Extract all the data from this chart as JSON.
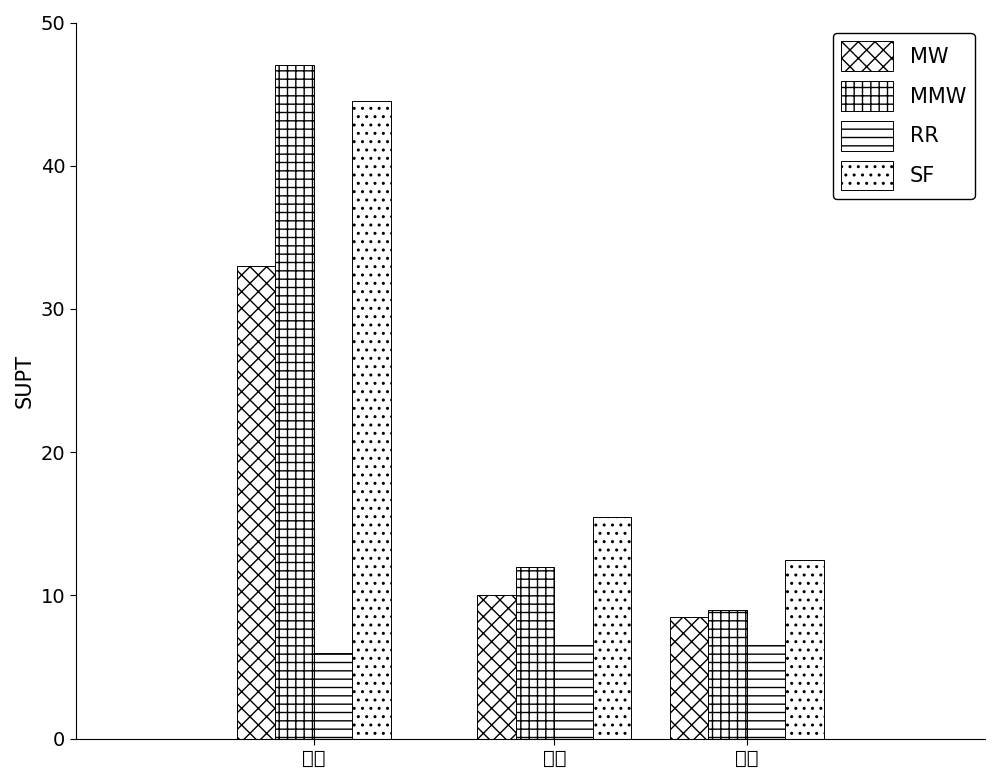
{
  "categories": [
    "轻载",
    "中载",
    "重载"
  ],
  "series": {
    "MW": [
      33,
      10,
      8.5
    ],
    "MMW": [
      47,
      12,
      9
    ],
    "RR": [
      6,
      6.5,
      6.5
    ],
    "SF": [
      44.5,
      15.5,
      12.5
    ]
  },
  "ylabel": "SUPT",
  "ylim": [
    0,
    50
  ],
  "yticks": [
    0,
    10,
    20,
    30,
    40,
    50
  ],
  "bar_width": 0.16,
  "legend_labels": [
    "MW",
    "MMW",
    "RR",
    "SF"
  ],
  "hatch_patterns": [
    "xx",
    "++",
    "--",
    ".."
  ],
  "hatch_legend": [
    "xx",
    "++",
    "--",
    ".."
  ],
  "colors": [
    "white",
    "white",
    "white",
    "white"
  ],
  "edgecolors": [
    "black",
    "black",
    "black",
    "black"
  ],
  "figsize": [
    10.0,
    7.83
  ],
  "dpi": 100,
  "font_size": 15,
  "tick_font_size": 14
}
